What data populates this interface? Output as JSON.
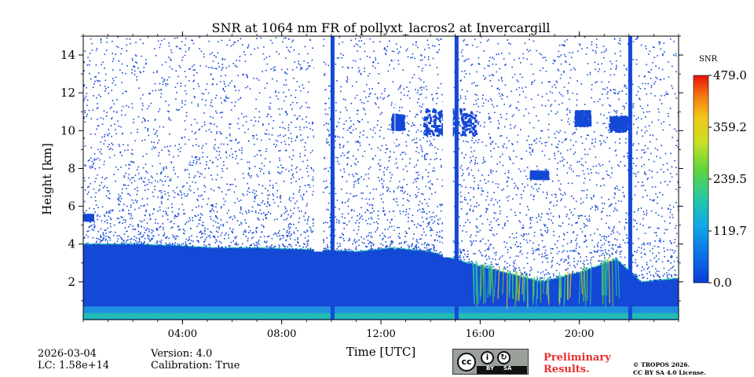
{
  "chart_data": {
    "type": "heatmap",
    "title": "SNR at 1064 nm FR of pollyxt_lacros2 at Invercargill",
    "xlabel": "Time [UTC]",
    "ylabel": "Height [km]",
    "xlim_hours": [
      0,
      24
    ],
    "ylim_km": [
      0,
      15
    ],
    "x_ticks": [
      {
        "hour": 4,
        "label": "04:00"
      },
      {
        "hour": 8,
        "label": "08:00"
      },
      {
        "hour": 12,
        "label": "12:00"
      },
      {
        "hour": 16,
        "label": "16:00"
      },
      {
        "hour": 20,
        "label": "20:00"
      }
    ],
    "y_ticks": [
      {
        "km": 2,
        "label": "2"
      },
      {
        "km": 4,
        "label": "4"
      },
      {
        "km": 6,
        "label": "6"
      },
      {
        "km": 8,
        "label": "8"
      },
      {
        "km": 10,
        "label": "10"
      },
      {
        "km": 12,
        "label": "12"
      },
      {
        "km": 14,
        "label": "14"
      }
    ],
    "colorbar": {
      "label": "SNR",
      "colormap": "jet",
      "range": [
        0.0,
        479.0
      ],
      "ticks": [
        {
          "value": 0.0,
          "label": "0.0"
        },
        {
          "value": 119.7,
          "label": "119.7"
        },
        {
          "value": 239.5,
          "label": "239.5"
        },
        {
          "value": 359.2,
          "label": "359.2"
        },
        {
          "value": 479.0,
          "label": "479.0"
        }
      ]
    },
    "features": {
      "boundary_layer_top_km": [
        [
          0,
          4.0
        ],
        [
          2,
          4.0
        ],
        [
          4,
          3.9
        ],
        [
          5.3,
          3.8
        ],
        [
          7,
          3.8
        ],
        [
          9.3,
          3.7
        ],
        [
          11,
          3.6
        ],
        [
          12.5,
          3.8
        ],
        [
          14,
          3.6
        ],
        [
          15.5,
          3.0
        ],
        [
          17,
          2.5
        ],
        [
          18.5,
          2.0
        ],
        [
          20,
          2.5
        ],
        [
          21.5,
          3.2
        ],
        [
          22.5,
          2.0
        ],
        [
          24,
          2.2
        ]
      ],
      "data_gaps_hours": [
        [
          9.3,
          9.65
        ],
        [
          12.55,
          12.58
        ],
        [
          14.5,
          14.9
        ]
      ],
      "vertical_streaks_hours": [
        10.05,
        15.05,
        22.05
      ],
      "clouds": [
        {
          "t_start": 12.4,
          "t_end": 12.9,
          "h_bottom_km": 10.1,
          "h_top_km": 10.9
        },
        {
          "t_start": 13.7,
          "t_end": 15.8,
          "h_bottom_km": 9.8,
          "h_top_km": 11.2
        },
        {
          "t_start": 18.0,
          "t_end": 18.7,
          "h_bottom_km": 7.5,
          "h_top_km": 7.9
        },
        {
          "t_start": 19.8,
          "t_end": 20.4,
          "h_bottom_km": 10.3,
          "h_top_km": 11.1
        },
        {
          "t_start": 21.2,
          "t_end": 21.9,
          "h_bottom_km": 10.0,
          "h_top_km": 10.8
        },
        {
          "t_start": 0,
          "t_end": 0.35,
          "h_bottom_km": 5.3,
          "h_top_km": 5.6
        }
      ]
    }
  },
  "footer": {
    "date": "2026-03-04",
    "lc": "LC: 1.58e+14",
    "version": "Version: 4.0",
    "calibration": "Calibration: True",
    "preliminary_line1": "Preliminary",
    "preliminary_line2": "Results.",
    "copyright_line1": "© TROPOS 2026.",
    "copyright_line2": "CC BY SA 4.0 License.",
    "license_badge": {
      "cc": "cc",
      "by": "BY",
      "sa": "SA"
    }
  },
  "colors": {
    "low": "#1448d6",
    "medium": "#1f8fe0",
    "cyan": "#22c7a8",
    "green": "#7ed321",
    "yellow": "#e8d41a",
    "high": "#e81f0f",
    "prelim_text": "#e8302b"
  }
}
